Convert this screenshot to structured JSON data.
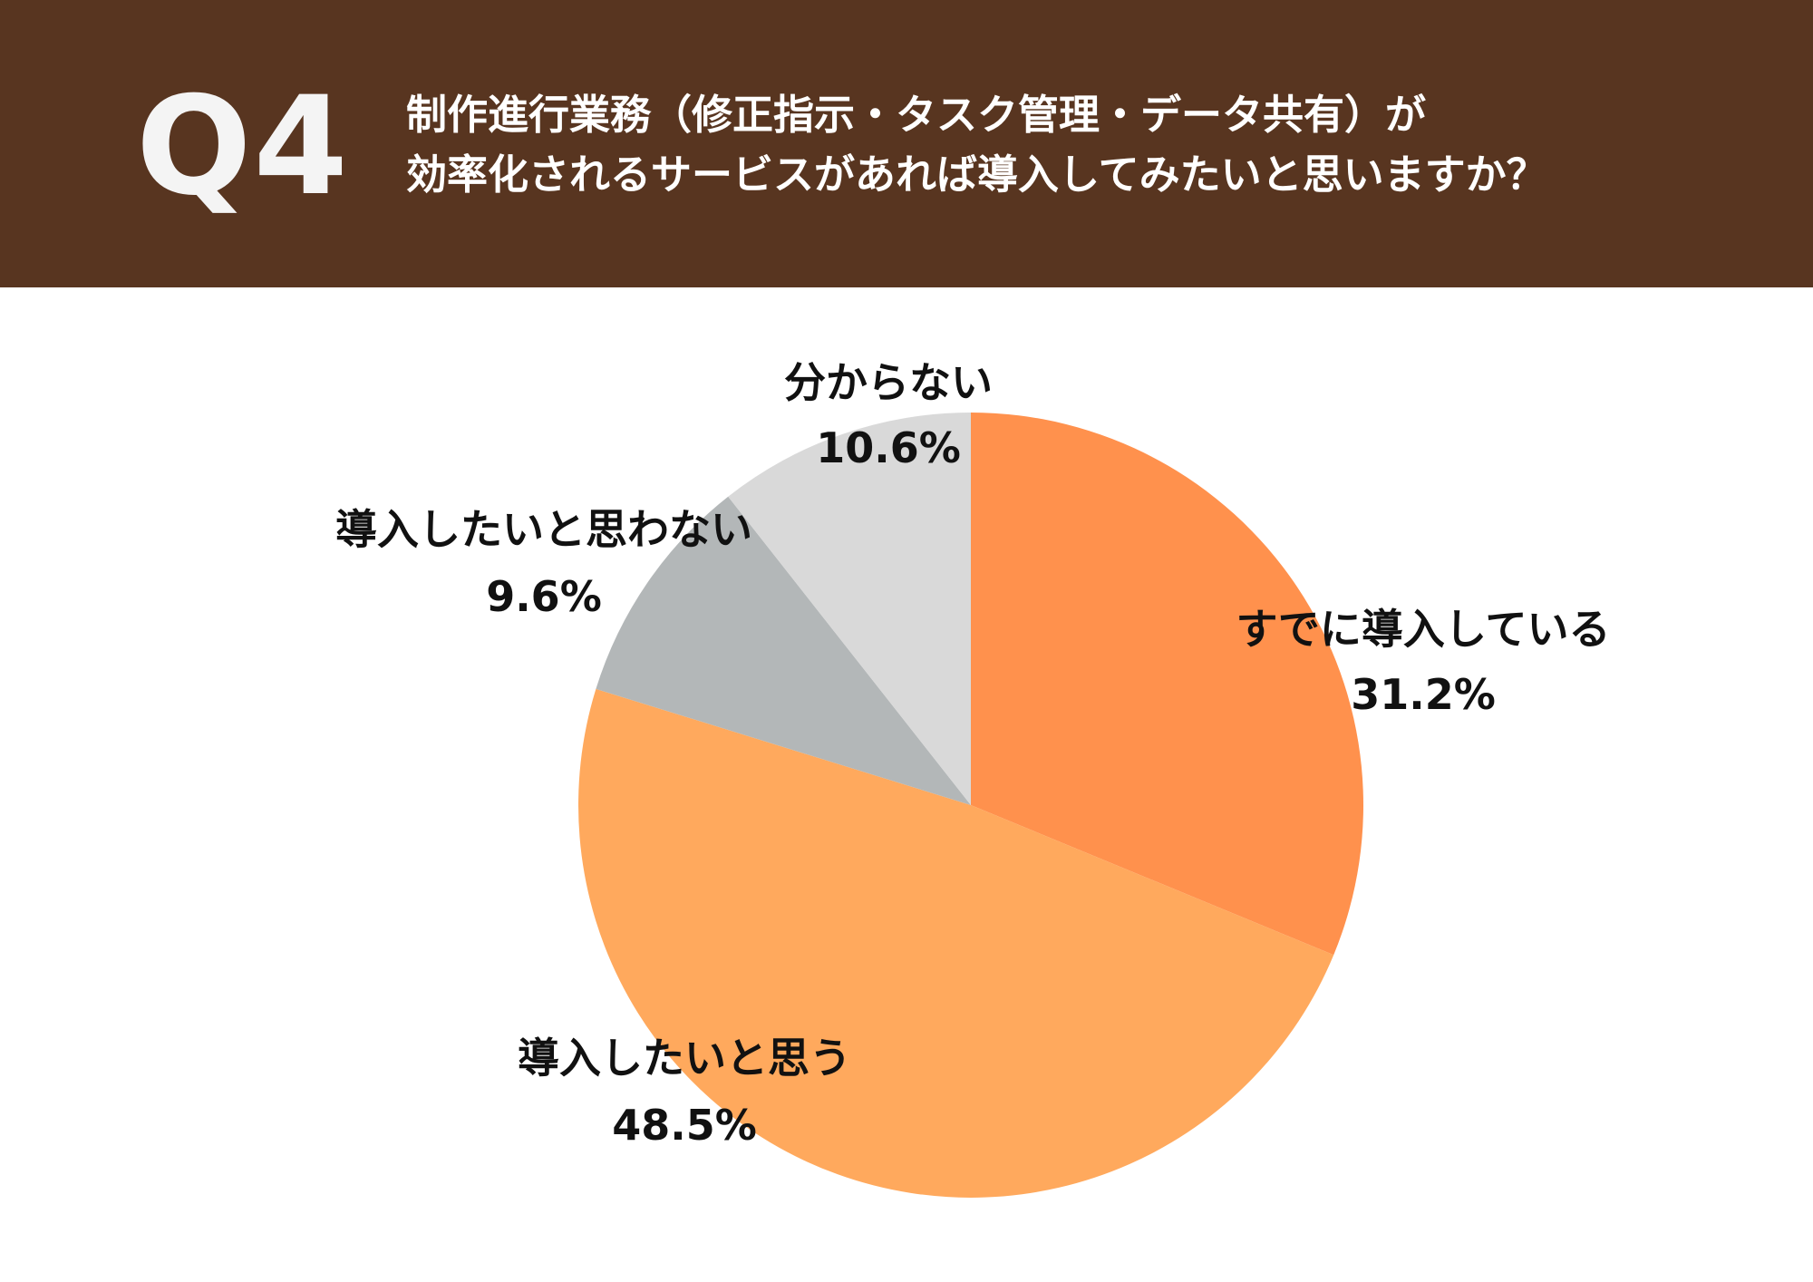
{
  "header": {
    "question_number": "Q4",
    "question_line1": "制作進行業務（修正指示・タスク管理・データ共有）が",
    "question_line2": "効率化されるサービスがあれば導入してみたいと思いますか？"
  },
  "colors": {
    "header_bg": "#583520",
    "header_text": "#ffffff"
  },
  "chart_data": {
    "type": "pie",
    "start_angle_deg": 0,
    "direction": "clockwise",
    "slices": [
      {
        "label": "すでに導入している",
        "value": 31.2,
        "value_label": "31.2%",
        "color": "#FF914D"
      },
      {
        "label": "導入したいと思う",
        "value": 48.5,
        "value_label": "48.5%",
        "color": "#FFA95D"
      },
      {
        "label": "導入したいと思わない",
        "value": 9.6,
        "value_label": "9.6%",
        "color": "#B3B7B8"
      },
      {
        "label": "分からない",
        "value": 10.6,
        "value_label": "10.6%",
        "color": "#D9D9D9"
      }
    ]
  }
}
